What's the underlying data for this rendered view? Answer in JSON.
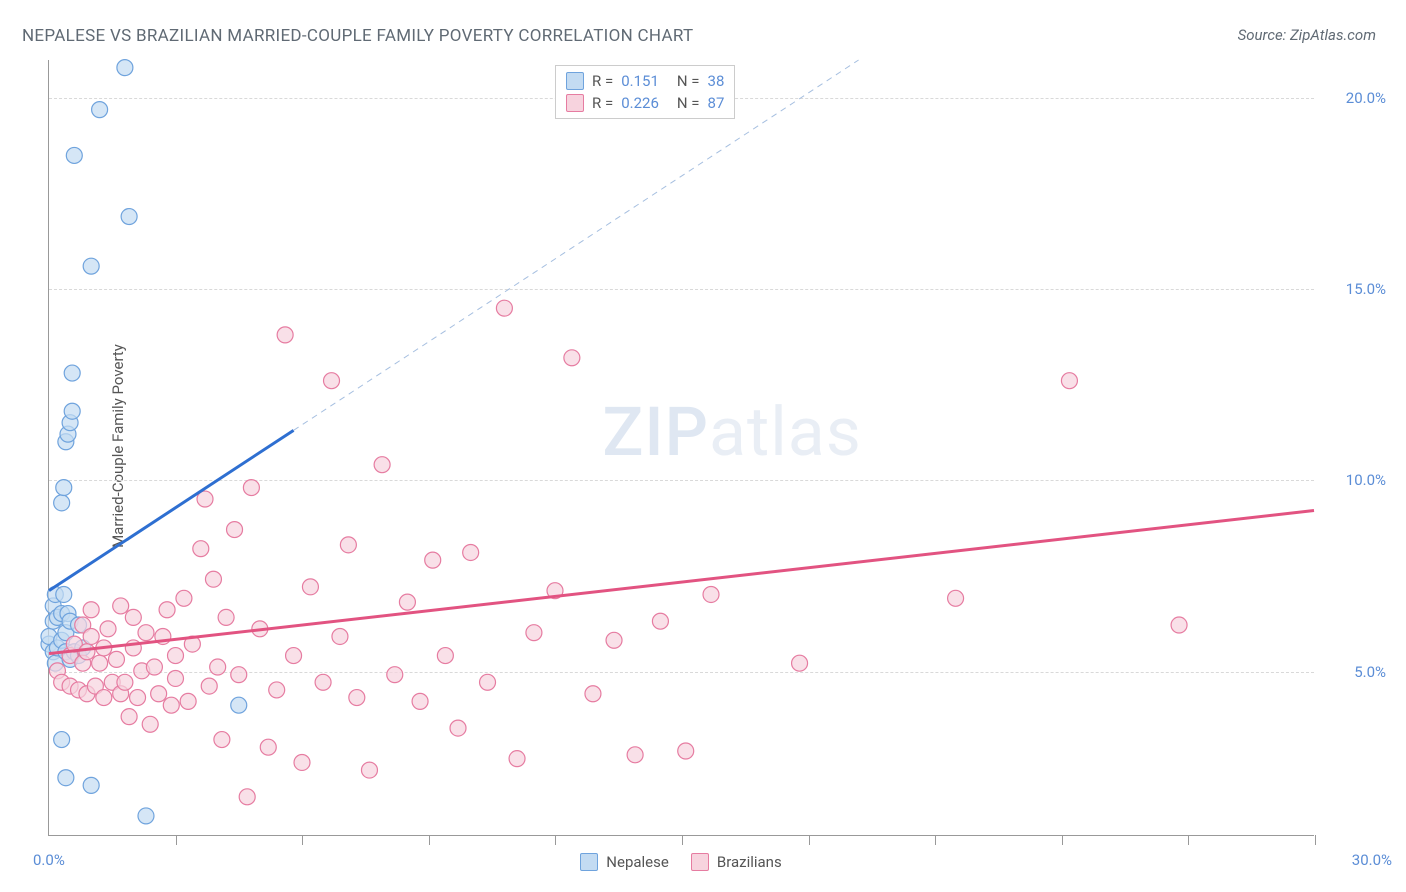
{
  "chart": {
    "type": "scatter-with-regression",
    "title": "NEPALESE VS BRAZILIAN MARRIED-COUPLE FAMILY POVERTY CORRELATION CHART",
    "source_label": "Source: ZipAtlas.com",
    "y_axis_label": "Married-Couple Family Poverty",
    "watermark": {
      "bold": "ZIP",
      "rest": "atlas"
    },
    "xlim": [
      0,
      30
    ],
    "ylim": [
      0.7,
      21.0
    ],
    "x_ticks": [
      0,
      3,
      6,
      9,
      12,
      15,
      18,
      21,
      24,
      27,
      30
    ],
    "y_gridlines": [
      5.0,
      10.0,
      15.0,
      20.0
    ],
    "y_tick_labels": [
      "5.0%",
      "10.0%",
      "15.0%",
      "20.0%"
    ],
    "x_min_label": "0.0%",
    "x_max_label": "30.0%",
    "background_color": "#ffffff",
    "grid_color": "#d9d9d9",
    "axis_color": "#999999",
    "tick_label_color": "#5b8dd6",
    "series": [
      {
        "name": "Nepalese",
        "marker_fill": "#c3dbf2",
        "marker_stroke": "#6fa3dd",
        "marker_radius": 8,
        "R": "0.151",
        "N": "38",
        "regression_line": {
          "x1": 0,
          "y1": 7.1,
          "x2": 5.8,
          "y2": 11.3,
          "color": "#2e6fd1",
          "width": 3,
          "dash": "none"
        },
        "regression_extrapolation": {
          "x1": 5.8,
          "y1": 11.3,
          "x2": 19.2,
          "y2": 21.0,
          "color": "#a6bfe0",
          "width": 1,
          "dash": "6 5"
        },
        "points": [
          [
            0.0,
            5.7
          ],
          [
            0.0,
            5.9
          ],
          [
            0.1,
            6.3
          ],
          [
            0.1,
            6.7
          ],
          [
            0.15,
            7.0
          ],
          [
            0.1,
            5.5
          ],
          [
            0.15,
            5.2
          ],
          [
            0.2,
            5.6
          ],
          [
            0.2,
            6.4
          ],
          [
            0.3,
            5.8
          ],
          [
            0.3,
            6.5
          ],
          [
            0.35,
            7.0
          ],
          [
            0.4,
            5.5
          ],
          [
            0.4,
            6.0
          ],
          [
            0.45,
            6.5
          ],
          [
            0.5,
            6.3
          ],
          [
            0.5,
            5.3
          ],
          [
            0.6,
            5.5
          ],
          [
            0.7,
            5.4
          ],
          [
            0.7,
            6.2
          ],
          [
            0.8,
            5.6
          ],
          [
            0.3,
            9.4
          ],
          [
            0.35,
            9.8
          ],
          [
            0.4,
            11.0
          ],
          [
            0.45,
            11.2
          ],
          [
            0.5,
            11.5
          ],
          [
            0.55,
            11.8
          ],
          [
            0.6,
            18.5
          ],
          [
            1.0,
            15.6
          ],
          [
            1.2,
            19.7
          ],
          [
            1.8,
            20.8
          ],
          [
            1.9,
            16.9
          ],
          [
            0.3,
            3.2
          ],
          [
            0.4,
            2.2
          ],
          [
            1.0,
            2.0
          ],
          [
            2.3,
            1.2
          ],
          [
            4.5,
            4.1
          ],
          [
            0.55,
            12.8
          ]
        ]
      },
      {
        "name": "Brazilians",
        "marker_fill": "#f7d3de",
        "marker_stroke": "#e67ca1",
        "marker_radius": 8,
        "R": "0.226",
        "N": "87",
        "regression_line": {
          "x1": 0,
          "y1": 5.45,
          "x2": 30,
          "y2": 9.2,
          "color": "#e25381",
          "width": 3,
          "dash": "none"
        },
        "points": [
          [
            0.2,
            5.0
          ],
          [
            0.3,
            4.7
          ],
          [
            0.5,
            5.4
          ],
          [
            0.5,
            4.6
          ],
          [
            0.6,
            5.7
          ],
          [
            0.7,
            4.5
          ],
          [
            0.8,
            5.2
          ],
          [
            0.8,
            6.2
          ],
          [
            0.9,
            4.4
          ],
          [
            0.9,
            5.5
          ],
          [
            1.0,
            5.9
          ],
          [
            1.0,
            6.6
          ],
          [
            1.1,
            4.6
          ],
          [
            1.2,
            5.2
          ],
          [
            1.3,
            5.6
          ],
          [
            1.3,
            4.3
          ],
          [
            1.4,
            6.1
          ],
          [
            1.5,
            4.7
          ],
          [
            1.6,
            5.3
          ],
          [
            1.7,
            4.4
          ],
          [
            1.7,
            6.7
          ],
          [
            1.8,
            4.7
          ],
          [
            1.9,
            3.8
          ],
          [
            2.0,
            5.6
          ],
          [
            2.0,
            6.4
          ],
          [
            2.1,
            4.3
          ],
          [
            2.2,
            5.0
          ],
          [
            2.3,
            6.0
          ],
          [
            2.4,
            3.6
          ],
          [
            2.5,
            5.1
          ],
          [
            2.6,
            4.4
          ],
          [
            2.7,
            5.9
          ],
          [
            2.8,
            6.6
          ],
          [
            2.9,
            4.1
          ],
          [
            3.0,
            5.4
          ],
          [
            3.0,
            4.8
          ],
          [
            3.2,
            6.9
          ],
          [
            3.3,
            4.2
          ],
          [
            3.4,
            5.7
          ],
          [
            3.6,
            8.2
          ],
          [
            3.7,
            9.5
          ],
          [
            3.8,
            4.6
          ],
          [
            3.9,
            7.4
          ],
          [
            4.0,
            5.1
          ],
          [
            4.1,
            3.2
          ],
          [
            4.2,
            6.4
          ],
          [
            4.4,
            8.7
          ],
          [
            4.5,
            4.9
          ],
          [
            4.7,
            1.7
          ],
          [
            4.8,
            9.8
          ],
          [
            5.0,
            6.1
          ],
          [
            5.2,
            3.0
          ],
          [
            5.4,
            4.5
          ],
          [
            5.6,
            13.8
          ],
          [
            5.8,
            5.4
          ],
          [
            6.0,
            2.6
          ],
          [
            6.2,
            7.2
          ],
          [
            6.5,
            4.7
          ],
          [
            6.7,
            12.6
          ],
          [
            6.9,
            5.9
          ],
          [
            7.1,
            8.3
          ],
          [
            7.3,
            4.3
          ],
          [
            7.6,
            2.4
          ],
          [
            7.9,
            10.4
          ],
          [
            8.2,
            4.9
          ],
          [
            8.5,
            6.8
          ],
          [
            8.8,
            4.2
          ],
          [
            9.1,
            7.9
          ],
          [
            9.4,
            5.4
          ],
          [
            9.7,
            3.5
          ],
          [
            10.0,
            8.1
          ],
          [
            10.4,
            4.7
          ],
          [
            10.8,
            14.5
          ],
          [
            11.1,
            2.7
          ],
          [
            11.5,
            6.0
          ],
          [
            12.0,
            7.1
          ],
          [
            12.4,
            13.2
          ],
          [
            12.9,
            4.4
          ],
          [
            13.4,
            5.8
          ],
          [
            13.9,
            2.8
          ],
          [
            14.5,
            6.3
          ],
          [
            15.1,
            2.9
          ],
          [
            15.7,
            7.0
          ],
          [
            21.5,
            6.9
          ],
          [
            24.2,
            12.6
          ],
          [
            26.8,
            6.2
          ],
          [
            17.8,
            5.2
          ]
        ]
      }
    ]
  }
}
